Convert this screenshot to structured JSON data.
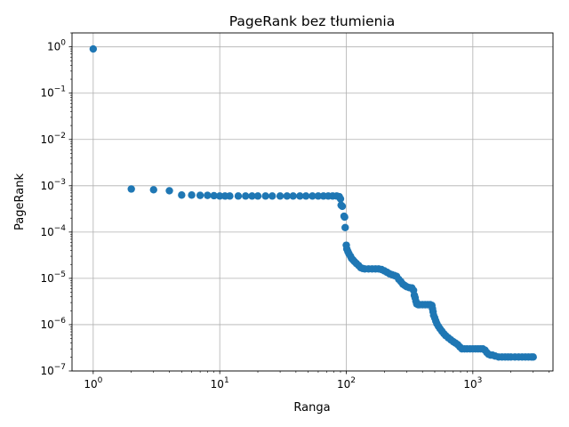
{
  "chart_data": {
    "type": "scatter",
    "title": "PageRank bez tłumienia",
    "xlabel": "Ranga",
    "ylabel": "PageRank",
    "xscale": "log",
    "yscale": "log",
    "xlim": [
      0.68,
      4300
    ],
    "ylim": [
      1e-07,
      2
    ],
    "grid": true,
    "color": "#1f77b4",
    "x_ticks": [
      {
        "base": "10",
        "exp": "0",
        "value": 1
      },
      {
        "base": "10",
        "exp": "1",
        "value": 10
      },
      {
        "base": "10",
        "exp": "2",
        "value": 100
      },
      {
        "base": "10",
        "exp": "3",
        "value": 1000
      }
    ],
    "y_ticks": [
      {
        "base": "10",
        "exp": "0",
        "value": 1
      },
      {
        "base": "10",
        "exp": "−1",
        "value": 0.1
      },
      {
        "base": "10",
        "exp": "−2",
        "value": 0.01
      },
      {
        "base": "10",
        "exp": "−3",
        "value": 0.001
      },
      {
        "base": "10",
        "exp": "−4",
        "value": 0.0001
      },
      {
        "base": "10",
        "exp": "−5",
        "value": 1e-05
      },
      {
        "base": "10",
        "exp": "−6",
        "value": 1e-06
      },
      {
        "base": "10",
        "exp": "−7",
        "value": 1e-07
      }
    ],
    "points": [
      [
        1,
        0.9
      ],
      [
        2,
        0.00085
      ],
      [
        3,
        0.00082
      ],
      [
        4,
        0.00078
      ],
      [
        5,
        0.00063
      ],
      [
        6,
        0.00063
      ],
      [
        7,
        0.00062
      ],
      [
        8,
        0.00062
      ],
      [
        9,
        0.00061
      ],
      [
        10,
        0.0006
      ],
      [
        11,
        0.0006
      ],
      [
        12,
        0.0006
      ],
      [
        14,
        0.0006
      ],
      [
        16,
        0.0006
      ],
      [
        18,
        0.0006
      ],
      [
        20,
        0.0006
      ],
      [
        23,
        0.0006
      ],
      [
        26,
        0.0006
      ],
      [
        30,
        0.0006
      ],
      [
        34,
        0.0006
      ],
      [
        38,
        0.0006
      ],
      [
        43,
        0.0006
      ],
      [
        48,
        0.0006
      ],
      [
        54,
        0.0006
      ],
      [
        60,
        0.0006
      ],
      [
        66,
        0.0006
      ],
      [
        72,
        0.0006
      ],
      [
        78,
        0.0006
      ],
      [
        84,
        0.0006
      ],
      [
        88,
        0.00058
      ],
      [
        90,
        0.00052
      ],
      [
        91,
        0.00038
      ],
      [
        93,
        0.00036
      ],
      [
        96,
        0.00022
      ],
      [
        97,
        0.00021
      ],
      [
        98,
        0.000125
      ],
      [
        100,
        5.2e-05
      ],
      [
        101,
        4.3e-05
      ],
      [
        103,
        3.8e-05
      ],
      [
        105,
        3.4e-05
      ],
      [
        108,
        3e-05
      ],
      [
        110,
        2.7e-05
      ],
      [
        113,
        2.5e-05
      ],
      [
        116,
        2.3e-05
      ],
      [
        120,
        2.1e-05
      ],
      [
        125,
        1.9e-05
      ],
      [
        130,
        1.7e-05
      ],
      [
        135,
        1.63e-05
      ],
      [
        140,
        1.6e-05
      ],
      [
        150,
        1.6e-05
      ],
      [
        160,
        1.6e-05
      ],
      [
        170,
        1.6e-05
      ],
      [
        180,
        1.6e-05
      ],
      [
        190,
        1.55e-05
      ],
      [
        200,
        1.45e-05
      ],
      [
        210,
        1.35e-05
      ],
      [
        220,
        1.25e-05
      ],
      [
        230,
        1.2e-05
      ],
      [
        240,
        1.15e-05
      ],
      [
        250,
        1.1e-05
      ],
      [
        260,
        9.5e-06
      ],
      [
        270,
        8.5e-06
      ],
      [
        280,
        7.5e-06
      ],
      [
        290,
        7e-06
      ],
      [
        300,
        6.6e-06
      ],
      [
        315,
        6.3e-06
      ],
      [
        330,
        6.2e-06
      ],
      [
        340,
        5.5e-06
      ],
      [
        345,
        4.3e-06
      ],
      [
        350,
        3.8e-06
      ],
      [
        355,
        3.2e-06
      ],
      [
        360,
        2.8e-06
      ],
      [
        370,
        2.7e-06
      ],
      [
        380,
        2.7e-06
      ],
      [
        400,
        2.7e-06
      ],
      [
        420,
        2.7e-06
      ],
      [
        440,
        2.7e-06
      ],
      [
        460,
        2.7e-06
      ],
      [
        475,
        2.6e-06
      ],
      [
        480,
        2.2e-06
      ],
      [
        485,
        1.9e-06
      ],
      [
        490,
        1.6e-06
      ],
      [
        500,
        1.4e-06
      ],
      [
        510,
        1.2e-06
      ],
      [
        520,
        1.05e-06
      ],
      [
        535,
        9.2e-07
      ],
      [
        550,
        8.2e-07
      ],
      [
        570,
        7.2e-07
      ],
      [
        590,
        6.4e-07
      ],
      [
        610,
        5.8e-07
      ],
      [
        640,
        5.2e-07
      ],
      [
        670,
        4.7e-07
      ],
      [
        700,
        4.3e-07
      ],
      [
        730,
        4e-07
      ],
      [
        760,
        3.7e-07
      ],
      [
        790,
        3.3e-07
      ],
      [
        820,
        3e-07
      ],
      [
        860,
        3e-07
      ],
      [
        900,
        3e-07
      ],
      [
        950,
        3e-07
      ],
      [
        1000,
        3e-07
      ],
      [
        1050,
        3e-07
      ],
      [
        1100,
        3e-07
      ],
      [
        1150,
        3e-07
      ],
      [
        1200,
        3e-07
      ],
      [
        1250,
        2.8e-07
      ],
      [
        1290,
        2.5e-07
      ],
      [
        1330,
        2.3e-07
      ],
      [
        1380,
        2.2e-07
      ],
      [
        1430,
        2.2e-07
      ],
      [
        1500,
        2.1e-07
      ],
      [
        1600,
        2e-07
      ],
      [
        1700,
        2e-07
      ],
      [
        1800,
        2e-07
      ],
      [
        1900,
        2e-07
      ],
      [
        2000,
        2e-07
      ],
      [
        2150,
        2e-07
      ],
      [
        2300,
        2e-07
      ],
      [
        2450,
        2e-07
      ],
      [
        2600,
        2e-07
      ],
      [
        2750,
        2e-07
      ],
      [
        2900,
        2e-07
      ],
      [
        3000,
        2e-07
      ]
    ]
  }
}
